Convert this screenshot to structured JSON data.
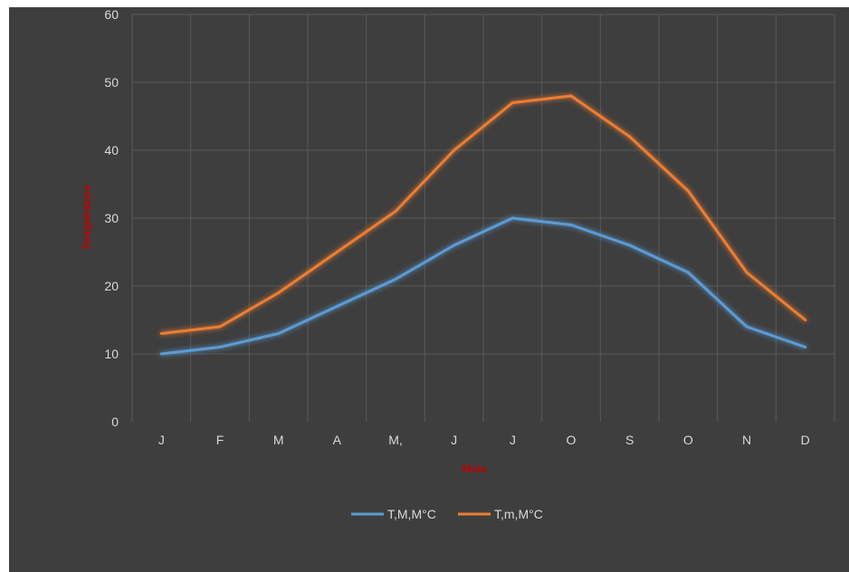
{
  "chart_data": {
    "type": "line",
    "title": "",
    "xlabel": "Mois",
    "ylabel": "Température",
    "categories": [
      "J",
      "F",
      "M",
      "A",
      "M,",
      "J",
      "J",
      "O",
      "S",
      "O",
      "N",
      "D"
    ],
    "ylim": [
      0,
      60
    ],
    "yticks": [
      0,
      10,
      20,
      30,
      40,
      50,
      60
    ],
    "grid": true,
    "legend_position": "bottom",
    "series": [
      {
        "name": "T,M,M°C",
        "color": "#5b9bd5",
        "values": [
          10,
          11,
          13,
          17,
          21,
          26,
          30,
          29,
          26,
          22,
          14,
          11
        ]
      },
      {
        "name": "T,m,M°C",
        "color": "#ed7d31",
        "values": [
          13,
          14,
          19,
          25,
          31,
          40,
          47,
          48,
          42,
          34,
          22,
          15
        ]
      }
    ],
    "colors": {
      "background": "#3e3e3e",
      "grid": "#595959",
      "text": "#d9d9d9",
      "axis_title": "#c00000"
    }
  }
}
